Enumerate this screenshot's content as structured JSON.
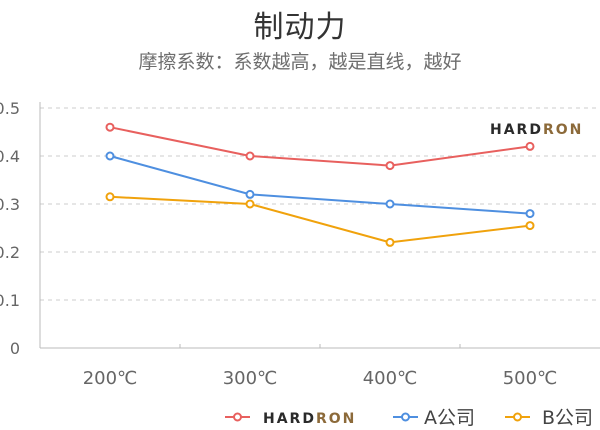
{
  "header": {
    "title": "制动力",
    "subtitle": "摩擦系数：系数越高，越是直线，越好"
  },
  "watermark": {
    "brand_dark": "HARD",
    "brand_accent": "RON"
  },
  "axes": {
    "y_ticks": [
      "0",
      "0.1",
      "0.2",
      "0.3",
      "0.4",
      "0.5"
    ],
    "x_ticks": [
      "200℃",
      "300℃",
      "400℃",
      "500℃"
    ]
  },
  "legend": [
    {
      "label_dark": "HARD",
      "label_accent": "RON",
      "color": "#e8605e"
    },
    {
      "label": "A公司",
      "color": "#4e8fe0"
    },
    {
      "label": "B公司",
      "color": "#f0a20c"
    }
  ],
  "colors": {
    "brand_dark": "#2a2a2a",
    "brand_accent": "#8c6a3a",
    "grid": "#cccccc",
    "axis": "#bbbbbb"
  },
  "chart_data": {
    "type": "line",
    "title": "制动力",
    "subtitle": "摩擦系数：系数越高，越是直线，越好",
    "xlabel": "",
    "ylabel": "",
    "categories": [
      "200℃",
      "300℃",
      "400℃",
      "500℃"
    ],
    "series": [
      {
        "name": "HARDRON",
        "color": "#e8605e",
        "values": [
          0.46,
          0.4,
          0.38,
          0.42
        ]
      },
      {
        "name": "A公司",
        "color": "#4e8fe0",
        "values": [
          0.4,
          0.32,
          0.3,
          0.28
        ]
      },
      {
        "name": "B公司",
        "color": "#f0a20c",
        "values": [
          0.315,
          0.3,
          0.22,
          0.255
        ]
      }
    ],
    "ylim": [
      0,
      0.5
    ],
    "grid": true,
    "legend_position": "bottom-right"
  }
}
